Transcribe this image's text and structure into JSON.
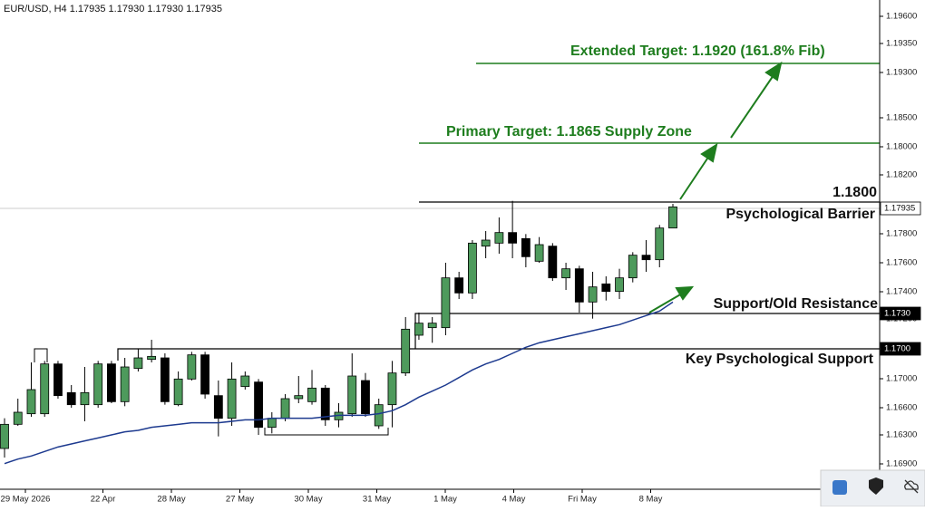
{
  "chart_data": {
    "type": "candlestick",
    "title": "EUR/USD, H4 1.17935 1.17930 1.17930 1.17935",
    "up_color": "#4e9a5c",
    "down_color": "#000000",
    "ylim": [
      1.1607,
      1.1931
    ],
    "open": [
      1.1634,
      1.165,
      1.1657,
      1.1657,
      1.169,
      1.1671,
      1.1663,
      1.1663,
      1.169,
      1.1665,
      1.1687,
      1.1693,
      1.1694,
      1.1663,
      1.168,
      1.1696,
      1.1669,
      1.1654,
      1.1675,
      1.1678,
      1.1648,
      1.1654,
      1.1667,
      1.1665,
      1.1674,
      1.1653,
      1.1657,
      1.1679,
      1.1649,
      1.1663,
      1.1684,
      1.1709,
      1.1714,
      1.1714,
      1.1747,
      1.1737,
      1.1768,
      1.177,
      1.1777,
      1.1773,
      1.1758,
      1.1768,
      1.1747,
      1.1753,
      1.1731,
      1.1743,
      1.1738,
      1.1747,
      1.1762,
      1.1759,
      1.178
    ],
    "high": [
      1.1654,
      1.1667,
      1.1691,
      1.1692,
      1.1692,
      1.1676,
      1.1688,
      1.1692,
      1.1692,
      1.1694,
      1.17,
      1.1706,
      1.1697,
      1.1685,
      1.1698,
      1.1698,
      1.1679,
      1.1691,
      1.1685,
      1.168,
      1.1658,
      1.167,
      1.1682,
      1.1686,
      1.1676,
      1.1664,
      1.1697,
      1.1684,
      1.1667,
      1.1692,
      1.1721,
      1.1724,
      1.1721,
      1.1757,
      1.1751,
      1.1772,
      1.1778,
      1.1787,
      1.1798,
      1.1776,
      1.1774,
      1.177,
      1.1757,
      1.1755,
      1.1751,
      1.1748,
      1.1753,
      1.1764,
      1.1772,
      1.1782,
      1.1796
    ],
    "low": [
      1.1628,
      1.1649,
      1.1655,
      1.1655,
      1.1667,
      1.1661,
      1.1652,
      1.1661,
      1.1664,
      1.1662,
      1.1685,
      1.1691,
      1.1663,
      1.1662,
      1.1679,
      1.1667,
      1.1642,
      1.1649,
      1.1673,
      1.1643,
      1.1644,
      1.1652,
      1.1664,
      1.1663,
      1.1649,
      1.1648,
      1.1655,
      1.1655,
      1.1647,
      1.1648,
      1.1682,
      1.1706,
      1.1704,
      1.1709,
      1.1733,
      1.1733,
      1.176,
      1.1763,
      1.176,
      1.1754,
      1.1757,
      1.1745,
      1.1739,
      1.1724,
      1.172,
      1.1732,
      1.1733,
      1.1744,
      1.1751,
      1.1754,
      1.178
    ],
    "close": [
      1.165,
      1.1658,
      1.1673,
      1.169,
      1.1669,
      1.1663,
      1.1671,
      1.169,
      1.1665,
      1.1688,
      1.1694,
      1.1695,
      1.1665,
      1.168,
      1.1696,
      1.167,
      1.1654,
      1.168,
      1.1682,
      1.1648,
      1.1654,
      1.1667,
      1.1669,
      1.1674,
      1.1653,
      1.1658,
      1.1682,
      1.1657,
      1.1663,
      1.1684,
      1.1713,
      1.1717,
      1.1717,
      1.1747,
      1.1737,
      1.177,
      1.1772,
      1.1777,
      1.177,
      1.1761,
      1.1769,
      1.1747,
      1.1753,
      1.1731,
      1.1741,
      1.1738,
      1.1747,
      1.1762,
      1.1759,
      1.178,
      1.1794
    ],
    "moving_average": {
      "color": "#1d3a8f",
      "values": [
        1.1624,
        1.1627,
        1.1629,
        1.1632,
        1.1635,
        1.1637,
        1.1639,
        1.1641,
        1.1643,
        1.1645,
        1.1646,
        1.1648,
        1.1649,
        1.165,
        1.1651,
        1.1651,
        1.1651,
        1.1652,
        1.1653,
        1.1653,
        1.1654,
        1.1654,
        1.1654,
        1.1654,
        1.1655,
        1.1656,
        1.1656,
        1.1656,
        1.1657,
        1.1659,
        1.1663,
        1.1668,
        1.1672,
        1.1676,
        1.1681,
        1.1686,
        1.169,
        1.1693,
        1.1697,
        1.1701,
        1.1704,
        1.1706,
        1.1708,
        1.171,
        1.1712,
        1.1714,
        1.1716,
        1.1719,
        1.1722,
        1.1725,
        1.1731
      ]
    },
    "price_axis_labels": [
      "1.19600",
      "1.19350",
      "1.19300",
      "1.18500",
      "1.18000",
      "1.18200",
      "1.17800",
      "1.17600",
      "1.17400",
      "1.17200",
      "1.17000",
      "1.16600",
      "1.16300",
      "1.16900"
    ],
    "x_labels": [
      "29 May 2026",
      "22 Apr",
      "28 May",
      "27 May",
      "30 May",
      "31 May",
      "1 May",
      "4 May",
      "Fri May",
      "8 May"
    ],
    "price_tags": [
      "1.17935",
      "1.1730",
      "1.1700"
    ],
    "annotations": {
      "extended_target": "Extended Target: 1.1920 (161.8% Fib)",
      "primary_target": "Primary Target: 1.1865 Supply Zone",
      "barrier_level": "1.1800",
      "barrier": "Psychological Barrier",
      "support_old_resistance": "Support/Old Resistance",
      "key_support": "Key Psychological Support"
    }
  }
}
